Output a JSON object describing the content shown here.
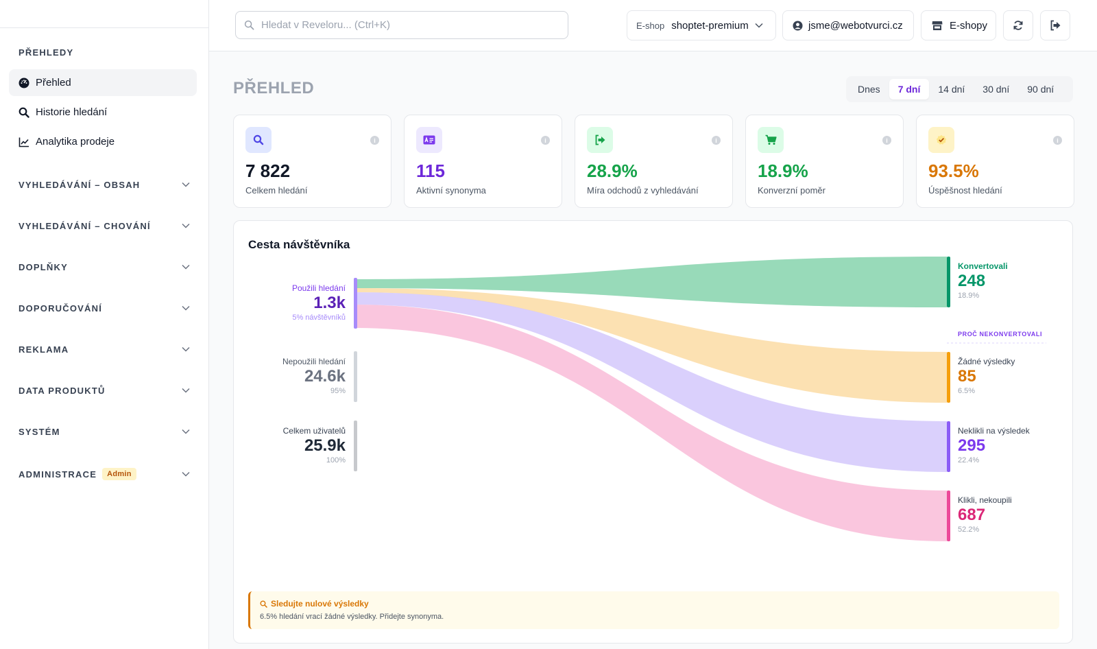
{
  "sidebar": {
    "section_title": "PŘEHLEDY",
    "items": [
      {
        "label": "Přehled",
        "icon": "dashboard-icon",
        "active": true
      },
      {
        "label": "Historie hledání",
        "icon": "search-icon",
        "active": false
      },
      {
        "label": "Analytika prodeje",
        "icon": "chart-line-icon",
        "active": false
      }
    ],
    "groups": [
      {
        "label": "VYHLEDÁVÁNÍ – OBSAH"
      },
      {
        "label": "VYHLEDÁVÁNÍ – CHOVÁNÍ"
      },
      {
        "label": "DOPLŇKY"
      },
      {
        "label": "DOPORUČOVÁNÍ"
      },
      {
        "label": "REKLAMA"
      },
      {
        "label": "DATA PRODUKTŮ"
      },
      {
        "label": "SYSTÉM"
      },
      {
        "label": "ADMINISTRACE",
        "badge": "Admin"
      }
    ]
  },
  "topbar": {
    "search_placeholder": "Hledat v Reveloru... (Ctrl+K)",
    "eshop_prefix": "E-shop",
    "eshop_value": "shoptet-premium",
    "user_email": "jsme@webotvurci.cz",
    "eshops_label": "E-shopy"
  },
  "page": {
    "title": "PŘEHLED",
    "range_options": [
      "Dnes",
      "7 dní",
      "14 dní",
      "30 dní",
      "90 dní"
    ],
    "range_selected": "7 dní"
  },
  "stats": [
    {
      "value": "7 822",
      "label": "Celkem hledání",
      "color": "#111827",
      "icon_bg": "#e0e7ff",
      "icon_color": "#4f46e5",
      "icon": "search-icon"
    },
    {
      "value": "115",
      "label": "Aktivní synonyma",
      "color": "#6d28d9",
      "icon_bg": "#ede9fe",
      "icon_color": "#7c3aed",
      "icon": "synonym-card-icon"
    },
    {
      "value": "28.9%",
      "label": "Míra odchodů z vyhledávání",
      "color": "#16a34a",
      "icon_bg": "#dcfce7",
      "icon_color": "#16a34a",
      "icon": "exit-icon"
    },
    {
      "value": "18.9%",
      "label": "Konverzní poměr",
      "color": "#16a34a",
      "icon_bg": "#dcfce7",
      "icon_color": "#16a34a",
      "icon": "cart-icon"
    },
    {
      "value": "93.5%",
      "label": "Úspěšnost hledání",
      "color": "#d97706",
      "icon_bg": "#fef3c7",
      "icon_color": "#d97706",
      "icon": "check-badge-icon"
    }
  ],
  "journey": {
    "title": "Cesta návštěvníka",
    "left": [
      {
        "label": "Použili hledání",
        "value": "1.3k",
        "sub": "5% návštěvníků",
        "color": "#7c3aed",
        "value_color": "#5b21b6",
        "sub_color": "#a78bfa"
      },
      {
        "label": "Nepoužili hledání",
        "value": "24.6k",
        "sub": "95%",
        "color": "#4b5563",
        "value_color": "#6b7280",
        "sub_color": "#9ca3af"
      },
      {
        "label": "Celkem uživatelů",
        "value": "25.9k",
        "sub": "100%",
        "color": "#374151",
        "value_color": "#1f2937",
        "sub_color": "#9ca3af"
      }
    ],
    "why_label": "PROČ NEKONVERTOVALI",
    "right": [
      {
        "label": "Konvertovali",
        "value": "248",
        "pct": "18.9%",
        "color": "#059669",
        "flow": "#86d4ad"
      },
      {
        "label": "Žádné výsledky",
        "value": "85",
        "pct": "6.5%",
        "color": "#d97706",
        "flow": "#fcdca4"
      },
      {
        "label": "Neklikli na výsledek",
        "value": "295",
        "pct": "22.4%",
        "color": "#7c3aed",
        "flow": "#d4c8fc"
      },
      {
        "label": "Klikli, nekoupili",
        "value": "687",
        "pct": "52.2%",
        "color": "#db2777",
        "flow": "#f9bcd8"
      }
    ]
  },
  "tip": {
    "title": "Sledujte nulové výsledky",
    "text": "6.5% hledání vrací žádné výsledky. Přidejte synonyma."
  }
}
